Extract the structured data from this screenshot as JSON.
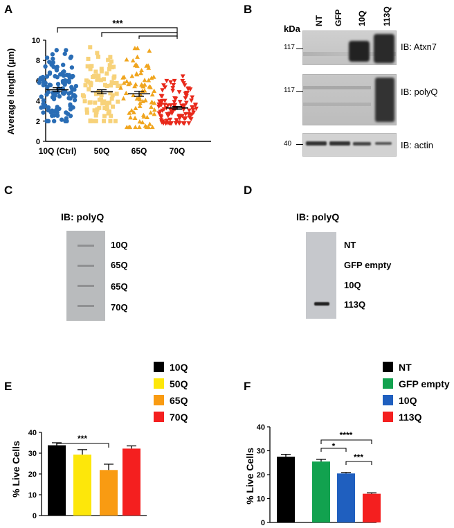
{
  "panels": {
    "A": "A",
    "B": "B",
    "C": "C",
    "D": "D",
    "E": "E",
    "F": "F"
  },
  "panel_A": {
    "ylabel": "Average length (µm)",
    "yticks": [
      "0",
      "2",
      "4",
      "6",
      "8",
      "10"
    ],
    "sig": "***",
    "colors": [
      "#2a6db5",
      "#f7d27a",
      "#f0a51e",
      "#e8291b"
    ]
  },
  "panel_B": {
    "kda": "kDa",
    "lanes": [
      "NT",
      "GFP",
      "10Q",
      "113Q"
    ],
    "blots": [
      {
        "marker": "117",
        "label": "IB: Atxn7"
      },
      {
        "marker": "117",
        "label": "IB: polyQ"
      },
      {
        "marker": "40",
        "label": "IB: actin"
      }
    ]
  },
  "panel_C": {
    "title": "IB: polyQ",
    "bands": [
      "10Q",
      "65Q",
      "65Q",
      "70Q"
    ]
  },
  "panel_D": {
    "title": "IB: polyQ",
    "bands": [
      "NT",
      "GFP empty",
      "10Q",
      "113Q"
    ]
  },
  "panel_E": {
    "ylabel": "% Live Cells",
    "yticks": [
      "0",
      "10",
      "20",
      "30",
      "40"
    ],
    "legend": [
      {
        "label": "10Q",
        "color": "#000000"
      },
      {
        "label": "50Q",
        "color": "#fde70a"
      },
      {
        "label": "65Q",
        "color": "#f99b12"
      },
      {
        "label": "70Q",
        "color": "#f41f1f"
      }
    ],
    "sig": "***"
  },
  "panel_F": {
    "ylabel": "% Live Cells",
    "yticks": [
      "0",
      "10",
      "20",
      "30",
      "40"
    ],
    "legend": [
      {
        "label": "NT",
        "color": "#000000"
      },
      {
        "label": "GFP empty",
        "color": "#12a24f"
      },
      {
        "label": "10Q",
        "color": "#1f5fbf"
      },
      {
        "label": "113Q",
        "color": "#f41f1f"
      }
    ],
    "sigs": [
      "****",
      "*",
      "***"
    ]
  },
  "chart_data": [
    {
      "type": "scatter",
      "categories": [
        "10Q (Ctrl)",
        "50Q",
        "65Q",
        "70Q"
      ],
      "means": [
        5.1,
        4.9,
        4.7,
        3.3
      ],
      "sem": [
        0.2,
        0.2,
        0.25,
        0.15
      ],
      "ranges": [
        [
          2.0,
          9.4
        ],
        [
          2.0,
          9.3
        ],
        [
          1.4,
          9.2
        ],
        [
          1.8,
          6.8
        ]
      ],
      "ylabel": "Average length (µm)",
      "ylim": [
        0,
        10
      ]
    },
    {
      "type": "bar",
      "categories": [
        "10Q",
        "50Q",
        "65Q",
        "70Q"
      ],
      "values": [
        33.8,
        29.3,
        21.9,
        32.2
      ],
      "errors": [
        1.2,
        2.4,
        2.8,
        1.3
      ],
      "ylabel": "% Live Cells",
      "ylim": [
        0,
        40
      ]
    },
    {
      "type": "bar",
      "categories": [
        "NT",
        "GFP empty",
        "10Q",
        "113Q"
      ],
      "values": [
        27.5,
        25.5,
        20.5,
        12.0
      ],
      "errors": [
        1.0,
        0.9,
        0.4,
        0.4
      ],
      "ylabel": "% Live Cells",
      "ylim": [
        0,
        40
      ]
    }
  ]
}
